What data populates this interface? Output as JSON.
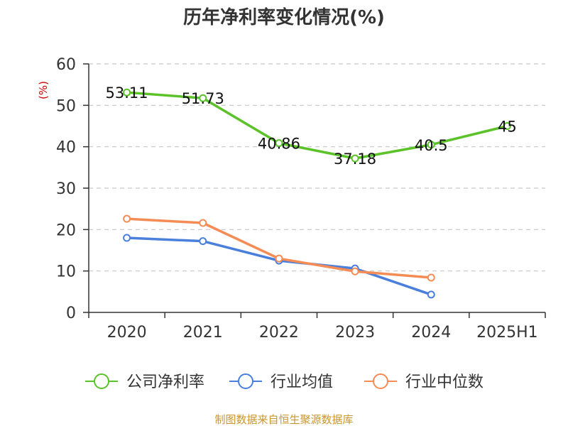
{
  "chart_data": {
    "type": "line",
    "title": "历年净利率变化情况(%)",
    "ylabel": "(%)",
    "xlabel": "",
    "categories": [
      "2020",
      "2021",
      "2022",
      "2023",
      "2024",
      "2025H1"
    ],
    "ylim": [
      0,
      60
    ],
    "yticks": [
      0,
      10,
      20,
      30,
      40,
      50,
      60
    ],
    "grid": true,
    "legend_position": "bottom",
    "series": [
      {
        "name": "公司净利率",
        "color": "#5cc22a",
        "values": [
          53.11,
          51.73,
          40.86,
          37.18,
          40.5,
          45
        ],
        "labels": [
          "53.11",
          "51.73",
          "40.86",
          "37.18",
          "40.5",
          "45"
        ]
      },
      {
        "name": "行业均值",
        "color": "#4a7fdc",
        "values": [
          18.0,
          17.2,
          12.5,
          10.6,
          4.3,
          null
        ]
      },
      {
        "name": "行业中位数",
        "color": "#f58c55",
        "values": [
          22.6,
          21.6,
          13.0,
          9.9,
          8.4,
          null
        ]
      }
    ]
  },
  "footer": {
    "source": "制图数据来自恒生聚源数据库"
  }
}
